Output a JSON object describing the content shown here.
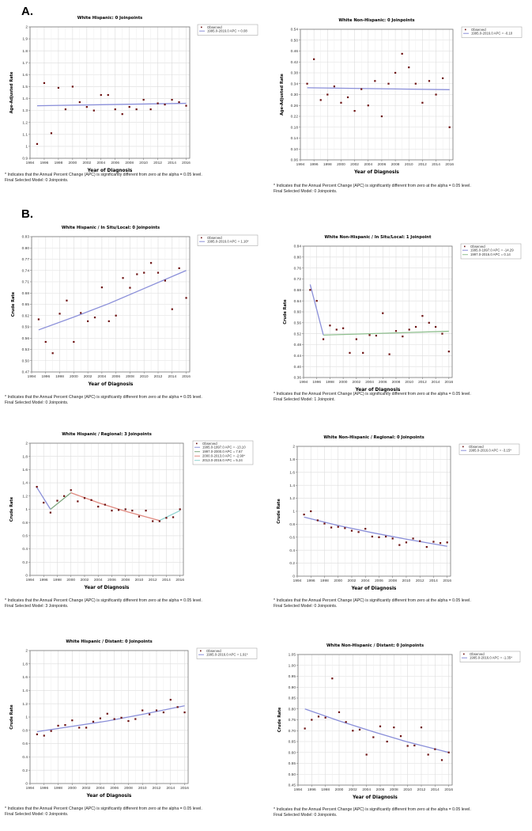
{
  "section_labels": {
    "a": "A.",
    "b": "B."
  },
  "footnote_prefix": "* Indicates that the Annual Percent Change (APC) is significantly different from zero at the alpha = 0.05 level.",
  "chart_data": [
    {
      "id": "a-hispanic",
      "type": "scatter",
      "title": "White Hispanic: 0 Joinpoints",
      "xlabel": "Year of Diagnosis",
      "ylabel": "Age-Adjusted Rate",
      "xlim": [
        1994,
        2016.5
      ],
      "ylim": [
        0.9,
        2.0
      ],
      "xticks": [
        "1994",
        "1996",
        "1998",
        "2000",
        "2002",
        "2004",
        "2006",
        "2008",
        "2010",
        "2012",
        "2014",
        "2016"
      ],
      "yticks": [
        "0.9",
        "1",
        "1.1",
        "1.2",
        "1.3",
        "1.4",
        "1.5",
        "1.6",
        "1.7",
        "1.8",
        "1.9",
        "2"
      ],
      "grid": true,
      "legend": "top-right",
      "observed_label": "Observed",
      "x": [
        1995,
        1996,
        1997,
        1998,
        1999,
        2000,
        2001,
        2002,
        2003,
        2004,
        2005,
        2006,
        2007,
        2008,
        2009,
        2010,
        2011,
        2012,
        2013,
        2014,
        2015,
        2016
      ],
      "observed": [
        1.02,
        1.53,
        1.11,
        1.49,
        1.31,
        1.5,
        1.37,
        1.33,
        1.3,
        1.43,
        1.43,
        1.31,
        1.27,
        1.33,
        1.31,
        1.39,
        1.31,
        1.36,
        1.35,
        1.39,
        1.37,
        1.34
      ],
      "segments": [
        {
          "label": "1995.0-2016.0 APC = 0.08",
          "x": [
            1995,
            2016
          ],
          "y": [
            1.34,
            1.36
          ],
          "color": "#8a8fd9"
        }
      ],
      "footnote_model": "Final Selected Model: 0 Joinpoints."
    },
    {
      "id": "a-nonhispanic",
      "type": "scatter",
      "title": "White Non-Hispanic: 0 Joinpoints",
      "xlabel": "Year of Diagnosis",
      "ylabel": "Age-Adjusted Rate",
      "xlim": [
        1994,
        2016.5
      ],
      "ylim": [
        0.06,
        0.54
      ],
      "xticks": [
        "1994",
        "1996",
        "1998",
        "2000",
        "2002",
        "2004",
        "2006",
        "2008",
        "2010",
        "2012",
        "2014",
        "2016"
      ],
      "yticks": [
        "0.06",
        "0.10",
        "0.14",
        "0.18",
        "0.22",
        "0.26",
        "0.30",
        "0.34",
        "0.38",
        "0.42",
        "0.46",
        "0.50",
        "0.54"
      ],
      "grid": true,
      "legend": "top-right",
      "observed_label": "Observed",
      "x": [
        1995,
        1996,
        1997,
        1998,
        1999,
        2000,
        2001,
        2002,
        2003,
        2004,
        2005,
        2006,
        2007,
        2008,
        2009,
        2010,
        2011,
        2012,
        2013,
        2014,
        2015,
        2016
      ],
      "observed": [
        0.34,
        0.43,
        0.28,
        0.3,
        0.33,
        0.27,
        0.29,
        0.24,
        0.32,
        0.26,
        0.35,
        0.22,
        0.34,
        0.38,
        0.45,
        0.4,
        0.34,
        0.27,
        0.35,
        0.3,
        0.36,
        0.18
      ],
      "segments": [
        {
          "label": "1995.0-2016.0 APC = -0.10",
          "x": [
            1995,
            2016
          ],
          "y": [
            0.325,
            0.318
          ],
          "color": "#8a8fd9"
        }
      ],
      "footnote_model": "Final Selected Model: 0 Joinpoints."
    },
    {
      "id": "b-hispanic-local",
      "type": "scatter",
      "title": "White Hispanic / In Situ/Local: 0 Joinpoints",
      "xlabel": "Year of Diagnosis",
      "ylabel": "Crude Rate",
      "xlim": [
        1994,
        2016.5
      ],
      "ylim": [
        0.47,
        0.83
      ],
      "xticks": [
        "1994",
        "1996",
        "1998",
        "2000",
        "2002",
        "2004",
        "2006",
        "2008",
        "2010",
        "2012",
        "2014",
        "2016"
      ],
      "yticks": [
        "0.47",
        "0.50",
        "0.53",
        "0.56",
        "0.59",
        "0.62",
        "0.65",
        "0.68",
        "0.71",
        "0.74",
        "0.77",
        "0.80",
        "0.83"
      ],
      "grid": true,
      "legend": "top-right",
      "observed_label": "Observed",
      "x": [
        1995,
        1996,
        1997,
        1998,
        1999,
        2000,
        2001,
        2002,
        2003,
        2004,
        2005,
        2006,
        2007,
        2008,
        2009,
        2010,
        2011,
        2012,
        2013,
        2014,
        2015,
        2016
      ],
      "observed": [
        0.61,
        0.55,
        0.52,
        0.625,
        0.66,
        0.55,
        0.627,
        0.605,
        0.615,
        0.695,
        0.605,
        0.62,
        0.72,
        0.694,
        0.73,
        0.734,
        0.76,
        0.734,
        0.713,
        0.637,
        0.746,
        0.667
      ],
      "segments": [
        {
          "label": "1995.0-2016.0 APC = 1.16*",
          "x": [
            1995,
            2000,
            2005,
            2010,
            2016
          ],
          "y": [
            0.582,
            0.616,
            0.652,
            0.692,
            0.74
          ],
          "color": "#8a8fd9"
        }
      ],
      "footnote_model": "Final Selected Model: 0 Joinpoints."
    },
    {
      "id": "b-nonhispanic-local",
      "type": "scatter",
      "title": "White Non-Hispanic / In Situ/Local: 1 Joinpoint",
      "xlabel": "Year of Diagnosis",
      "ylabel": "Crude Rate",
      "xlim": [
        1994,
        2016.5
      ],
      "ylim": [
        0.36,
        0.84
      ],
      "xticks": [
        "1994",
        "1996",
        "1998",
        "2000",
        "2002",
        "2004",
        "2006",
        "2008",
        "2010",
        "2012",
        "2014",
        "2016"
      ],
      "yticks": [
        "0.36",
        "0.40",
        "0.44",
        "0.48",
        "0.52",
        "0.56",
        "0.60",
        "0.64",
        "0.68",
        "0.72",
        "0.76",
        "0.80",
        "0.84"
      ],
      "grid": true,
      "legend": "top-right",
      "observed_label": "Observed",
      "x": [
        1995,
        1996,
        1997,
        1998,
        1999,
        2000,
        2001,
        2002,
        2003,
        2004,
        2005,
        2006,
        2007,
        2008,
        2009,
        2010,
        2011,
        2012,
        2013,
        2014,
        2015,
        2016
      ],
      "observed": [
        0.68,
        0.64,
        0.5,
        0.55,
        0.535,
        0.54,
        0.45,
        0.5,
        0.45,
        0.515,
        0.513,
        0.595,
        0.445,
        0.53,
        0.51,
        0.535,
        0.545,
        0.585,
        0.56,
        0.545,
        0.52,
        0.455
      ],
      "segments": [
        {
          "label": "1995.0-1997.0 APC = -14.29",
          "x": [
            1995,
            1997
          ],
          "y": [
            0.7,
            0.515
          ],
          "color": "#8a8fd9"
        },
        {
          "label": "1997.0-2016.0 APC = 0.14",
          "x": [
            1997,
            2016
          ],
          "y": [
            0.515,
            0.529
          ],
          "color": "#8fbf8f"
        }
      ],
      "footnote_model": "Final Selected Model: 1 Joinpoint."
    },
    {
      "id": "b-hispanic-regional",
      "type": "scatter",
      "title": "White Hispanic / Regional: 3 Joinpoints",
      "xlabel": "Year of Diagnosis",
      "ylabel": "Crude Rate",
      "xlim": [
        1994,
        2016.5
      ],
      "ylim": [
        0,
        2
      ],
      "xticks": [
        "1994",
        "1996",
        "1998",
        "2000",
        "2002",
        "2004",
        "2006",
        "2008",
        "2010",
        "2012",
        "2014",
        "2016"
      ],
      "yticks": [
        "0",
        "0.2",
        "0.4",
        "0.6",
        "0.8",
        "1",
        "1.2",
        "1.4",
        "1.6",
        "1.8",
        "2"
      ],
      "grid": true,
      "legend": "top-right",
      "observed_label": "Observed",
      "x": [
        1995,
        1996,
        1997,
        1998,
        1999,
        2000,
        2001,
        2002,
        2003,
        2004,
        2005,
        2006,
        2007,
        2008,
        2009,
        2010,
        2011,
        2012,
        2013,
        2014,
        2015,
        2016
      ],
      "observed": [
        1.34,
        1.1,
        0.95,
        1.13,
        1.2,
        1.29,
        1.12,
        1.17,
        1.14,
        1.04,
        1.07,
        0.98,
        0.99,
        1.0,
        0.98,
        0.89,
        0.98,
        0.82,
        0.82,
        0.87,
        0.88,
        1.0
      ],
      "segments": [
        {
          "label": "1995.0-1997.0 APC = -13.10",
          "x": [
            1995,
            1997
          ],
          "y": [
            1.33,
            1.0
          ],
          "color": "#8a8fd9"
        },
        {
          "label": "1997.0-2000.0 APC = 7.67",
          "x": [
            1997,
            2000
          ],
          "y": [
            1.0,
            1.25
          ],
          "color": "#7fa77f"
        },
        {
          "label": "2000.0-2013.0 APC = -2.90*",
          "x": [
            2000,
            2004,
            2008,
            2013
          ],
          "y": [
            1.25,
            1.1,
            0.97,
            0.83
          ],
          "color": "#e08a80"
        },
        {
          "label": "2013.0-2016.0 APC = 5.24",
          "x": [
            2013,
            2016
          ],
          "y": [
            0.83,
            0.98
          ],
          "color": "#8fd3d0"
        }
      ],
      "footnote_model": "Final Selected Model: 3 Joinpoints."
    },
    {
      "id": "b-nonhispanic-regional",
      "type": "scatter",
      "title": "White Non-Hispanic / Regional: 0 Joinpoints",
      "xlabel": "Year of Diagnosis",
      "ylabel": "Crude Rate",
      "xlim": [
        1994,
        2016.5
      ],
      "ylim": [
        0,
        2
      ],
      "xticks": [
        "1994",
        "1996",
        "1998",
        "2000",
        "2002",
        "2004",
        "2006",
        "2008",
        "2010",
        "2012",
        "2014",
        "2016"
      ],
      "yticks": [
        "0",
        "0.2",
        "0.4",
        "0.6",
        "0.8",
        "1",
        "1.2",
        "1.4",
        "1.6",
        "1.8",
        "2"
      ],
      "grid": true,
      "legend": "top-right",
      "observed_label": "Observed",
      "x": [
        1995,
        1996,
        1997,
        1998,
        1999,
        2000,
        2001,
        2002,
        2003,
        2004,
        2005,
        2006,
        2007,
        2008,
        2009,
        2010,
        2011,
        2012,
        2013,
        2014,
        2015,
        2016
      ],
      "observed": [
        0.95,
        1.0,
        0.86,
        0.81,
        0.75,
        0.76,
        0.74,
        0.7,
        0.68,
        0.73,
        0.61,
        0.6,
        0.61,
        0.58,
        0.48,
        0.52,
        0.58,
        0.54,
        0.45,
        0.53,
        0.51,
        0.52
      ],
      "segments": [
        {
          "label": "1995.0-2016.0 APC = -3.15*",
          "x": [
            1995,
            2000,
            2005,
            2010,
            2016
          ],
          "y": [
            0.91,
            0.78,
            0.67,
            0.57,
            0.46
          ],
          "color": "#8a8fd9"
        }
      ],
      "footnote_model": "Final Selected Model: 0 Joinpoints."
    },
    {
      "id": "b-hispanic-distant",
      "type": "scatter",
      "title": "White Hispanic / Distant: 0 Joinpoints",
      "xlabel": "Year of Diagnosis",
      "ylabel": "Crude Rate",
      "xlim": [
        1994,
        2016.5
      ],
      "ylim": [
        0,
        2
      ],
      "xticks": [
        "1994",
        "1996",
        "1998",
        "2000",
        "2002",
        "2004",
        "2006",
        "2008",
        "2010",
        "2012",
        "2014",
        "2016"
      ],
      "yticks": [
        "0",
        "0.2",
        "0.4",
        "0.6",
        "0.8",
        "1",
        "1.2",
        "1.4",
        "1.6",
        "1.8",
        "2"
      ],
      "grid": true,
      "legend": "top-right",
      "observed_label": "Observed",
      "x": [
        1995,
        1996,
        1997,
        1998,
        1999,
        2000,
        2001,
        2002,
        2003,
        2004,
        2005,
        2006,
        2007,
        2008,
        2009,
        2010,
        2011,
        2012,
        2013,
        2014,
        2015,
        2016
      ],
      "observed": [
        0.74,
        0.72,
        0.79,
        0.87,
        0.88,
        0.95,
        0.84,
        0.84,
        0.93,
        0.98,
        1.05,
        0.97,
        0.99,
        0.94,
        0.97,
        1.1,
        1.04,
        1.1,
        1.07,
        1.26,
        1.15,
        1.07
      ],
      "segments": [
        {
          "label": "1995.0-2016.0 APC = 1.91*",
          "x": [
            1995,
            2000,
            2005,
            2010,
            2016
          ],
          "y": [
            0.78,
            0.86,
            0.94,
            1.04,
            1.17
          ],
          "color": "#8a8fd9"
        }
      ],
      "footnote_model": "Final Selected Model: 0 Joinpoints."
    },
    {
      "id": "b-nonhispanic-distant",
      "type": "scatter",
      "title": "White Non-Hispanic / Distant: 0 Joinpoints",
      "xlabel": "Year of Diagnosis",
      "ylabel": "Crude Rate",
      "xlim": [
        1994,
        2016.5
      ],
      "ylim": [
        0.45,
        1.05
      ],
      "xticks": [
        "1994",
        "1996",
        "1998",
        "2000",
        "2002",
        "2004",
        "2006",
        "2008",
        "2010",
        "2012",
        "2014",
        "2016"
      ],
      "yticks": [
        "0.45",
        "0.50",
        "0.55",
        "0.60",
        "0.65",
        "0.70",
        "0.75",
        "0.80",
        "0.85",
        "0.90",
        "0.95",
        "1.00",
        "1.05"
      ],
      "grid": true,
      "legend": "top-right",
      "observed_label": "Observed",
      "x": [
        1995,
        1996,
        1997,
        1998,
        1999,
        2000,
        2001,
        2002,
        2003,
        2004,
        2005,
        2006,
        2007,
        2008,
        2009,
        2010,
        2011,
        2012,
        2013,
        2014,
        2015,
        2016
      ],
      "observed": [
        0.71,
        0.75,
        0.765,
        0.76,
        0.94,
        0.785,
        0.74,
        0.7,
        0.705,
        0.59,
        0.67,
        0.72,
        0.65,
        0.715,
        0.675,
        0.63,
        0.632,
        0.715,
        0.59,
        0.615,
        0.565,
        0.6
      ],
      "segments": [
        {
          "label": "1995.0-2016.0 APC = -1.35*",
          "x": [
            1995,
            2000,
            2005,
            2010,
            2016
          ],
          "y": [
            0.8,
            0.745,
            0.695,
            0.648,
            0.6
          ],
          "color": "#8a8fd9"
        }
      ],
      "footnote_model": "Final Selected Model: 0 Joinpoints."
    }
  ]
}
